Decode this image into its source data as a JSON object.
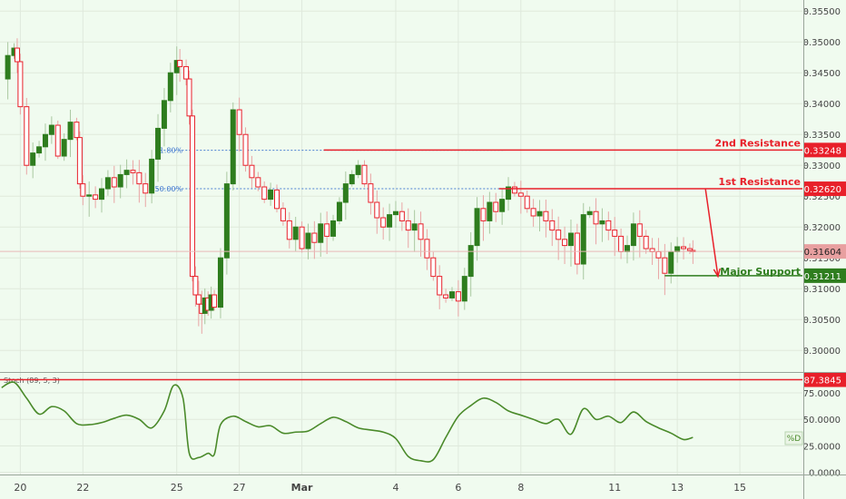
{
  "chart_data": [
    {
      "type": "candlestick",
      "title": "",
      "x_ticks": [
        {
          "day": 20,
          "label": "20"
        },
        {
          "day": 22,
          "label": "22"
        },
        {
          "day": 25,
          "label": "25"
        },
        {
          "day": 27,
          "label": "27"
        },
        {
          "day": 29,
          "label": "Mar"
        },
        {
          "day": 32,
          "label": "4"
        },
        {
          "day": 34,
          "label": "6"
        },
        {
          "day": 36,
          "label": "8"
        },
        {
          "day": 39,
          "label": "11"
        },
        {
          "day": 41,
          "label": "13"
        },
        {
          "day": 43,
          "label": "15"
        }
      ],
      "y_ticks": [
        "0.35500",
        "0.35000",
        "0.34500",
        "0.34000",
        "0.33500",
        "0.33000",
        "0.32500",
        "0.32000",
        "0.31500",
        "0.31000",
        "0.30500",
        "0.30000"
      ],
      "ylim": [
        0.2965,
        0.3568
      ],
      "xlim": [
        19.35,
        45.0
      ],
      "series_close": [
        [
          19.4,
          0.344
        ],
        [
          19.6,
          0.3478
        ],
        [
          19.8,
          0.349
        ],
        [
          19.9,
          0.3468
        ],
        [
          20.0,
          0.3395
        ],
        [
          20.2,
          0.33
        ],
        [
          20.4,
          0.332
        ],
        [
          20.6,
          0.333
        ],
        [
          20.8,
          0.335
        ],
        [
          21.0,
          0.3365
        ],
        [
          21.2,
          0.3315
        ],
        [
          21.4,
          0.3342
        ],
        [
          21.6,
          0.337
        ],
        [
          21.8,
          0.3345
        ],
        [
          21.9,
          0.327
        ],
        [
          22.0,
          0.325
        ],
        [
          22.2,
          0.3252
        ],
        [
          22.4,
          0.3245
        ],
        [
          22.6,
          0.3262
        ],
        [
          22.8,
          0.328
        ],
        [
          23.0,
          0.3265
        ],
        [
          23.2,
          0.3285
        ],
        [
          23.4,
          0.3292
        ],
        [
          23.6,
          0.3288
        ],
        [
          23.8,
          0.327
        ],
        [
          24.0,
          0.3255
        ],
        [
          24.2,
          0.331
        ],
        [
          24.4,
          0.336
        ],
        [
          24.6,
          0.3405
        ],
        [
          24.8,
          0.345
        ],
        [
          25.0,
          0.347
        ],
        [
          25.1,
          0.346
        ],
        [
          25.3,
          0.344
        ],
        [
          25.4,
          0.338
        ],
        [
          25.5,
          0.312
        ],
        [
          25.6,
          0.309
        ],
        [
          25.7,
          0.3075
        ],
        [
          25.8,
          0.306
        ],
        [
          25.9,
          0.3085
        ],
        [
          26.0,
          0.3065
        ],
        [
          26.1,
          0.309
        ],
        [
          26.2,
          0.307
        ],
        [
          26.4,
          0.315
        ],
        [
          26.6,
          0.327
        ],
        [
          26.8,
          0.339
        ],
        [
          27.0,
          0.335
        ],
        [
          27.2,
          0.33
        ],
        [
          27.4,
          0.328
        ],
        [
          27.6,
          0.3265
        ],
        [
          27.8,
          0.3245
        ],
        [
          28.0,
          0.326
        ],
        [
          28.2,
          0.323
        ],
        [
          28.4,
          0.321
        ],
        [
          28.6,
          0.318
        ],
        [
          28.8,
          0.32
        ],
        [
          29.0,
          0.3165
        ],
        [
          29.2,
          0.319
        ],
        [
          29.4,
          0.3175
        ],
        [
          29.6,
          0.3205
        ],
        [
          29.8,
          0.3185
        ],
        [
          30.0,
          0.321
        ],
        [
          30.2,
          0.324
        ],
        [
          30.4,
          0.327
        ],
        [
          30.6,
          0.3285
        ],
        [
          30.8,
          0.33
        ],
        [
          31.0,
          0.327
        ],
        [
          31.2,
          0.324
        ],
        [
          31.4,
          0.3215
        ],
        [
          31.6,
          0.32
        ],
        [
          31.8,
          0.322
        ],
        [
          32.0,
          0.3225
        ],
        [
          32.2,
          0.321
        ],
        [
          32.4,
          0.3195
        ],
        [
          32.6,
          0.3205
        ],
        [
          32.8,
          0.318
        ],
        [
          33.0,
          0.315
        ],
        [
          33.2,
          0.312
        ],
        [
          33.4,
          0.309
        ],
        [
          33.6,
          0.3085
        ],
        [
          33.8,
          0.3095
        ],
        [
          34.0,
          0.308
        ],
        [
          34.2,
          0.312
        ],
        [
          34.4,
          0.317
        ],
        [
          34.6,
          0.323
        ],
        [
          34.8,
          0.321
        ],
        [
          35.0,
          0.324
        ],
        [
          35.2,
          0.3225
        ],
        [
          35.4,
          0.3245
        ],
        [
          35.6,
          0.3265
        ],
        [
          35.8,
          0.3255
        ],
        [
          36.0,
          0.325
        ],
        [
          36.2,
          0.323
        ],
        [
          36.4,
          0.3218
        ],
        [
          36.6,
          0.3225
        ],
        [
          36.8,
          0.321
        ],
        [
          37.0,
          0.3195
        ],
        [
          37.2,
          0.318
        ],
        [
          37.4,
          0.317
        ],
        [
          37.6,
          0.319
        ],
        [
          37.8,
          0.314
        ],
        [
          38.0,
          0.322
        ],
        [
          38.2,
          0.3225
        ],
        [
          38.4,
          0.3205
        ],
        [
          38.6,
          0.321
        ],
        [
          38.8,
          0.3195
        ],
        [
          39.0,
          0.3185
        ],
        [
          39.2,
          0.316
        ],
        [
          39.4,
          0.317
        ],
        [
          39.6,
          0.3205
        ],
        [
          39.8,
          0.3185
        ],
        [
          40.0,
          0.3165
        ],
        [
          40.2,
          0.316
        ],
        [
          40.4,
          0.315
        ],
        [
          40.6,
          0.3125
        ],
        [
          40.8,
          0.316
        ],
        [
          41.0,
          0.3168
        ],
        [
          41.2,
          0.3165
        ],
        [
          41.4,
          0.3162
        ],
        [
          41.5,
          0.316
        ]
      ],
      "levels": [
        {
          "name": "2nd Resistance",
          "value": 0.33248,
          "label": "0.33248",
          "color": "#e8202a"
        },
        {
          "name": "1st Resistance",
          "value": 0.3262,
          "label": "0.32620",
          "color": "#e8202a"
        },
        {
          "name": "Major Support",
          "value": 0.31211,
          "label": "0.31211",
          "color": "#2e7d1e"
        }
      ],
      "current_price": {
        "value": 0.31604,
        "label": "0.31604",
        "color": "#e8a0a0"
      },
      "fib_levels": [
        {
          "label": "61.80%",
          "value": 0.33244
        },
        {
          "label": "50.00%",
          "value": 0.3262
        }
      ],
      "projection_arrow": {
        "from": [
          41.9,
          0.3262
        ],
        "to": [
          42.3,
          0.312
        ]
      },
      "colors": {
        "up": "#2e7d1e",
        "down": "#e8202a",
        "grid": "#dfe9dc",
        "fib": "#4a7fd1"
      }
    },
    {
      "type": "line",
      "indicator_label": "Stoch (89, 5, 3)",
      "y_ticks": [
        "75.0000",
        "50.0000",
        "25.0000",
        "0.0000"
      ],
      "ylim": [
        -2,
        93
      ],
      "overbought": {
        "value": 87.3845,
        "label": "87.3845",
        "color": "#e8202a"
      },
      "series_label": "%D",
      "x": [
        19.4,
        19.8,
        20.2,
        20.6,
        21.0,
        21.4,
        21.8,
        22.2,
        22.6,
        23.0,
        23.4,
        23.8,
        24.2,
        24.6,
        24.9,
        25.2,
        25.4,
        25.7,
        26.0,
        26.2,
        26.4,
        26.8,
        27.2,
        27.6,
        28.0,
        28.4,
        28.8,
        29.2,
        29.6,
        30.0,
        30.4,
        30.8,
        31.2,
        31.6,
        32.0,
        32.4,
        32.8,
        33.2,
        33.6,
        34.0,
        34.4,
        34.8,
        35.2,
        35.6,
        36.0,
        36.4,
        36.8,
        37.2,
        37.6,
        38.0,
        38.4,
        38.8,
        39.2,
        39.6,
        40.0,
        40.4,
        40.8,
        41.2,
        41.5
      ],
      "values": [
        80,
        85,
        70,
        55,
        62,
        58,
        46,
        45,
        47,
        51,
        54,
        50,
        42,
        58,
        82,
        70,
        18,
        14,
        18,
        17,
        45,
        53,
        48,
        43,
        44,
        37,
        38,
        39,
        46,
        52,
        48,
        42,
        40,
        38,
        32,
        15,
        11,
        12,
        33,
        53,
        63,
        70,
        66,
        58,
        54,
        50,
        46,
        50,
        36,
        60,
        50,
        53,
        47,
        57,
        48,
        42,
        37,
        31,
        33
      ],
      "color": "#4a8a2a"
    }
  ]
}
